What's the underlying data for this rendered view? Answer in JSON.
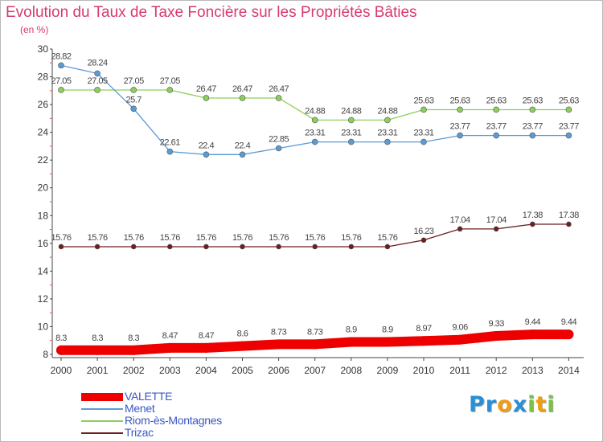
{
  "header": {
    "title": "Evolution du Taux de Taxe Foncière sur les Propriétés Bâties",
    "subtitle": "(en %)"
  },
  "logo": {
    "text": "Proxiti",
    "letters": [
      "P",
      "r",
      "o",
      "x",
      "i",
      "t",
      "i"
    ],
    "colors": [
      "#2a8fd6",
      "#2a8fd6",
      "#f39c12",
      "#2a8fd6",
      "#7cc242",
      "#f39c12",
      "#7cc242"
    ]
  },
  "chart_data": {
    "type": "line",
    "title": "Evolution du Taux de Taxe Foncière sur les Propriétés Bâties",
    "ylabel": "(en %)",
    "xlabel": "",
    "x": [
      "2000",
      "2001",
      "2002",
      "2003",
      "2004",
      "2005",
      "2006",
      "2007",
      "2008",
      "2009",
      "2010",
      "2011",
      "2012",
      "2013",
      "2014"
    ],
    "ylim": [
      8,
      30
    ],
    "yticks": [
      "8",
      "10",
      "12",
      "14",
      "16",
      "18",
      "20",
      "22",
      "24",
      "26",
      "28",
      "30"
    ],
    "grid": false,
    "legend_position": "bottom-left",
    "series": [
      {
        "name": "VALETTE",
        "color": "#ee0000",
        "values": [
          8.3,
          8.3,
          8.3,
          8.47,
          8.47,
          8.6,
          8.73,
          8.73,
          8.9,
          8.9,
          8.97,
          9.06,
          9.33,
          9.44,
          9.44
        ],
        "labels": [
          "8.3",
          "8.3",
          "8.3",
          "8.47",
          "8.47",
          "8.6",
          "8.73",
          "8.73",
          "8.9",
          "8.9",
          "8.97",
          "9.06",
          "9.33",
          "9.44",
          "9.44"
        ]
      },
      {
        "name": "Menet",
        "color": "#5b9bd5",
        "values": [
          28.82,
          28.24,
          25.7,
          22.61,
          22.4,
          22.4,
          22.85,
          23.31,
          23.31,
          23.31,
          23.31,
          23.77,
          23.77,
          23.77,
          23.77
        ],
        "labels": [
          "28.82",
          "28.24",
          "25.7",
          "22.61",
          "22.4",
          "22.4",
          "22.85",
          "23.31",
          "23.31",
          "23.31",
          "23.31",
          "23.77",
          "23.77",
          "23.77",
          "23.77"
        ]
      },
      {
        "name": "Riom-ès-Montagnes",
        "color": "#8ccf5a",
        "values": [
          27.05,
          27.05,
          27.05,
          27.05,
          26.47,
          26.47,
          26.47,
          24.88,
          24.88,
          24.88,
          25.63,
          25.63,
          25.63,
          25.63,
          25.63
        ],
        "labels": [
          "27.05",
          "27.05",
          "27.05",
          "27.05",
          "26.47",
          "26.47",
          "26.47",
          "24.88",
          "24.88",
          "24.88",
          "25.63",
          "25.63",
          "25.63",
          "25.63",
          "25.63"
        ]
      },
      {
        "name": "Trizac",
        "color": "#6b1f1f",
        "values": [
          15.76,
          15.76,
          15.76,
          15.76,
          15.76,
          15.76,
          15.76,
          15.76,
          15.76,
          15.76,
          16.23,
          17.04,
          17.04,
          17.38,
          17.38
        ],
        "labels": [
          "15.76",
          "15.76",
          "15.76",
          "15.76",
          "15.76",
          "15.76",
          "15.76",
          "15.76",
          "15.76",
          "15.76",
          "16.23",
          "17.04",
          "17.04",
          "17.38",
          "17.38"
        ]
      }
    ]
  }
}
